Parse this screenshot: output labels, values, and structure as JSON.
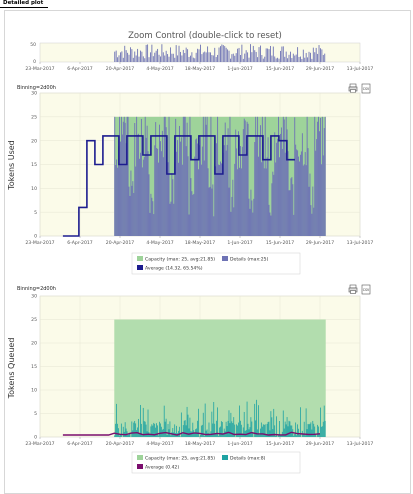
{
  "page": {
    "title": "Detailed plot"
  },
  "zoom_control": {
    "title": "Zoom Control (double-click to reset)",
    "y_ticks": [
      "0",
      "50"
    ]
  },
  "x_ticks": [
    "23-Mar-2017",
    "6-Apr-2017",
    "20-Apr-2017",
    "4-May-2017",
    "18-May-2017",
    "1-Jun-2017",
    "15-Jun-2017",
    "29-Jun-2017",
    "13-Jul-2017"
  ],
  "tokens_used": {
    "binning": "Binning=2d00h",
    "ylabel": "Tokens Used",
    "y_ticks": [
      "0",
      "5",
      "10",
      "15",
      "20",
      "25",
      "30"
    ],
    "legend": {
      "capacity": "Capacity (max: 25, avg:21.85)",
      "details": "Details (max:25)",
      "average": "Average (14.32, 65.54%)"
    }
  },
  "tokens_queued": {
    "binning": "Binning=2d00h",
    "ylabel": "Tokens Queued",
    "y_ticks": [
      "0",
      "5",
      "10",
      "15",
      "20",
      "25",
      "30"
    ],
    "legend": {
      "capacity": "Capacity (max: 25, avg:21.85)",
      "details": "Details (max:8)",
      "average": "Average (0.42)"
    }
  },
  "icons": {
    "print": "print-icon",
    "csv": "csv-icon"
  },
  "colors": {
    "plot_bg": "#fbfbe9",
    "capacity": "#9ed39a",
    "details_used": "#6e73b5",
    "average_used": "#1c1c8f",
    "details_queued": "#1fa3a3",
    "average_queued": "#7b0d6e"
  },
  "chart_data": [
    {
      "type": "area",
      "title": "Tokens Used",
      "ylabel": "Tokens Used",
      "ylim": [
        0,
        30
      ],
      "x_range": [
        "23-Mar-2017",
        "13-Jul-2017"
      ],
      "series": [
        {
          "name": "Capacity",
          "max": 25,
          "avg": 21.85,
          "start": "18-Apr-2017",
          "end": "1-Jul-2017"
        },
        {
          "name": "Details",
          "max": 25
        },
        {
          "name": "Average",
          "values": [
            0,
            0,
            6,
            20,
            15,
            21,
            21,
            15,
            21,
            21,
            17,
            21,
            21,
            13,
            21,
            21,
            16,
            21,
            21,
            13,
            21,
            21,
            17,
            21,
            21,
            16,
            21,
            20,
            16
          ]
        }
      ]
    },
    {
      "type": "area",
      "title": "Tokens Queued",
      "ylabel": "Tokens Queued",
      "ylim": [
        0,
        30
      ],
      "x_range": [
        "23-Mar-2017",
        "13-Jul-2017"
      ],
      "series": [
        {
          "name": "Capacity",
          "max": 25,
          "avg": 21.85,
          "start": "18-Apr-2017",
          "end": "1-Jul-2017"
        },
        {
          "name": "Details",
          "max": 8
        },
        {
          "name": "Average",
          "value": 0.42
        }
      ]
    }
  ]
}
